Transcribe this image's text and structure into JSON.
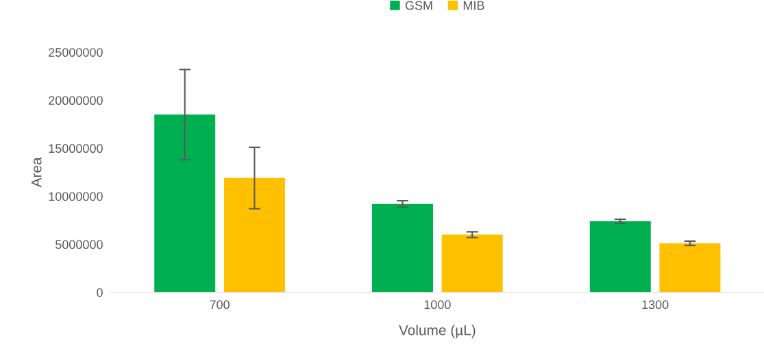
{
  "chart_data": {
    "type": "bar",
    "xlabel": "Volume (µL)",
    "ylabel": "Area",
    "categories": [
      "700",
      "1000",
      "1300"
    ],
    "series": [
      {
        "name": "GSM",
        "color": "#00b050",
        "values": [
          18500000,
          9200000,
          7400000
        ],
        "errors": [
          4700000,
          340000,
          200000
        ]
      },
      {
        "name": "MIB",
        "color": "#ffc000",
        "values": [
          11900000,
          6000000,
          5100000
        ],
        "errors": [
          3200000,
          300000,
          220000
        ]
      }
    ],
    "ylim": [
      0,
      25000000
    ],
    "yticks": [
      0,
      5000000,
      10000000,
      15000000,
      20000000,
      25000000
    ],
    "grid": false,
    "legend": "top"
  }
}
